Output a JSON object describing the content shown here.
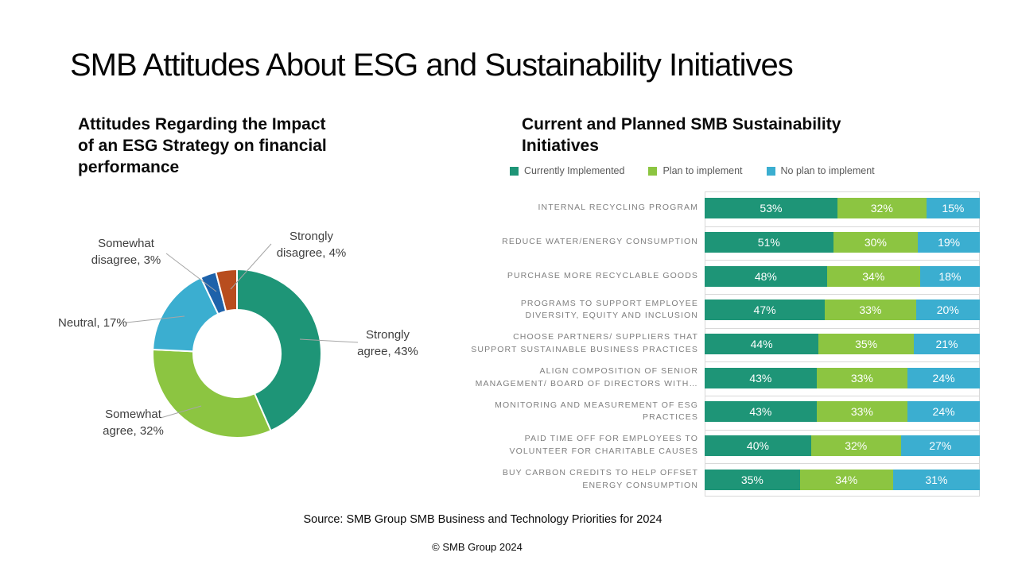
{
  "slide": {
    "title": "SMB Attitudes About ESG and Sustainability Initiatives",
    "source": "Source: SMB Group SMB Business and Technology Priorities for 2024",
    "footer": "© SMB Group 2024"
  },
  "donut": {
    "title": "Attitudes Regarding the Impact of an ESG Strategy on financial performance",
    "title_lines": [
      "Attitudes Regarding the Impact",
      "of an ESG Strategy on financial",
      "performance"
    ]
  },
  "bars": {
    "title": "Current and Planned SMB Sustainability Initiatives",
    "title_lines": [
      "Current and Planned SMB Sustainability",
      "Initiatives"
    ]
  },
  "colors": {
    "teal": "#1E9577",
    "green": "#8CC541",
    "light_blue": "#3BAED0",
    "dark_blue": "#1E62AA",
    "orange": "#B84D1E",
    "grid_gray": "#D9D9D9",
    "leader_gray": "#A6A6A6"
  },
  "chart_data": [
    {
      "type": "pie",
      "donut": true,
      "title": "Attitudes Regarding the Impact of an ESG Strategy on financial performance",
      "labels": [
        "Strongly agree",
        "Somewhat agree",
        "Neutral",
        "Somewhat disagree",
        "Strongly disagree"
      ],
      "values": [
        43,
        32,
        17,
        3,
        4
      ],
      "colors": [
        "#1E9577",
        "#8CC541",
        "#3BAED0",
        "#1E62AA",
        "#B84D1E"
      ],
      "callouts": [
        [
          "Strongly",
          "agree, 43%"
        ],
        [
          "Somewhat",
          "agree, 32%"
        ],
        [
          "Neutral, 17%"
        ],
        [
          "Somewhat",
          "disagree, 3%"
        ],
        [
          "Strongly",
          "disagree, 4%"
        ]
      ]
    },
    {
      "type": "bar",
      "stacked": true,
      "orientation": "horizontal",
      "title": "Current and Planned SMB Sustainability Initiatives",
      "xlim": [
        0,
        100
      ],
      "value_suffix": "%",
      "legend_position": "top",
      "categories": [
        "INTERNAL RECYCLING PROGRAM",
        "REDUCE WATER/ENERGY CONSUMPTION",
        "PURCHASE MORE RECYCLABLE GOODS",
        "PROGRAMS TO SUPPORT EMPLOYEE DIVERSITY, EQUITY AND INCLUSION",
        "CHOOSE PARTNERS/ SUPPLIERS THAT SUPPORT SUSTAINABLE BUSINESS PRACTICES",
        "ALIGN COMPOSITION OF SENIOR MANAGEMENT/ BOARD OF DIRECTORS WITH…",
        "MONITORING AND MEASUREMENT OF ESG PRACTICES",
        "PAID TIME OFF FOR EMPLOYEES TO VOLUNTEER FOR CHARITABLE CAUSES",
        "BUY CARBON CREDITS TO HELP OFFSET ENERGY CONSUMPTION"
      ],
      "category_lines": [
        [
          "INTERNAL RECYCLING PROGRAM"
        ],
        [
          "REDUCE WATER/ENERGY CONSUMPTION"
        ],
        [
          "PURCHASE MORE RECYCLABLE GOODS"
        ],
        [
          "PROGRAMS TO SUPPORT EMPLOYEE",
          "DIVERSITY, EQUITY AND INCLUSION"
        ],
        [
          "CHOOSE PARTNERS/ SUPPLIERS THAT",
          "SUPPORT SUSTAINABLE BUSINESS PRACTICES"
        ],
        [
          "ALIGN COMPOSITION OF SENIOR",
          "MANAGEMENT/ BOARD OF DIRECTORS WITH…"
        ],
        [
          "MONITORING AND MEASUREMENT OF ESG",
          "PRACTICES"
        ],
        [
          "PAID TIME OFF FOR EMPLOYEES TO",
          "VOLUNTEER FOR CHARITABLE CAUSES"
        ],
        [
          "BUY CARBON CREDITS TO HELP OFFSET",
          "ENERGY CONSUMPTION"
        ]
      ],
      "series": [
        {
          "name": "Currently Implemented",
          "color": "#1E9577",
          "values": [
            53,
            51,
            48,
            47,
            44,
            43,
            43,
            40,
            35
          ]
        },
        {
          "name": "Plan to implement",
          "color": "#8CC541",
          "values": [
            32,
            30,
            34,
            33,
            35,
            33,
            33,
            32,
            34
          ]
        },
        {
          "name": "No plan to implement",
          "color": "#3BAED0",
          "values": [
            15,
            19,
            18,
            20,
            21,
            24,
            24,
            27,
            31
          ]
        }
      ]
    }
  ]
}
